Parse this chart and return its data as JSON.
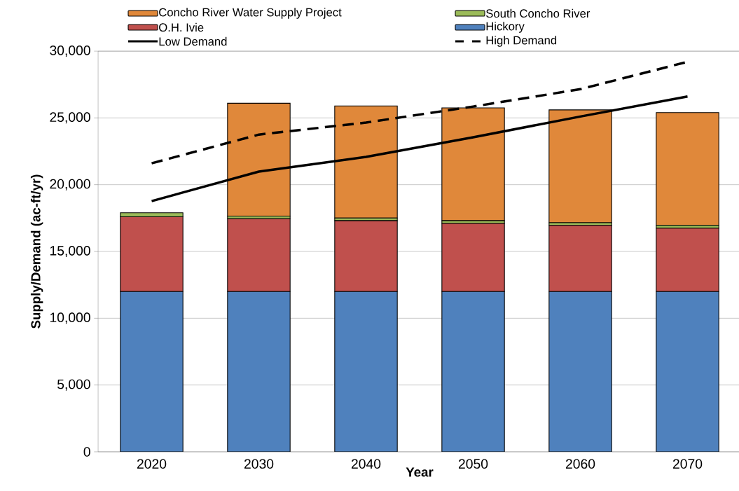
{
  "chart_data": {
    "type": "bar",
    "stacked": true,
    "xlabel": "Year",
    "ylabel": "Supply/Demand (ac-ft/yr)",
    "categories": [
      "2020",
      "2030",
      "2040",
      "2050",
      "2060",
      "2070"
    ],
    "series": [
      {
        "name": "Hickory",
        "color": "#4f81bd",
        "values": [
          12000,
          12000,
          12000,
          12000,
          12000,
          12000
        ]
      },
      {
        "name": "O.H. Ivie",
        "color": "#c0504d",
        "values": [
          5600,
          5450,
          5300,
          5100,
          4950,
          4750
        ]
      },
      {
        "name": "South Concho River",
        "color": "#9bbb59",
        "values": [
          300,
          200,
          200,
          200,
          200,
          200
        ]
      },
      {
        "name": "Concho River Water Supply Project",
        "color": "#e0883a",
        "values": [
          0,
          8450,
          8400,
          8450,
          8450,
          8450
        ]
      },
      {
        "name": "Low Demand",
        "type": "line",
        "color": "#000000",
        "line_style": "solid",
        "values": [
          18770,
          20980,
          22080,
          23550,
          25100,
          26600
        ]
      },
      {
        "name": "High Demand",
        "type": "line",
        "color": "#000000",
        "line_style": "dashed",
        "values": [
          21600,
          23750,
          24650,
          25850,
          27150,
          29200
        ]
      }
    ],
    "ylim": [
      0,
      30000
    ],
    "yticks": [
      0,
      {
        "value": 5000,
        "label": "5,000"
      },
      {
        "value": 10000,
        "label": "10,000"
      },
      {
        "value": 15000,
        "label": "15,000"
      },
      {
        "value": 20000,
        "label": "20,000"
      },
      {
        "value": 25000,
        "label": "25,000"
      },
      {
        "value": 30000,
        "label": "30,000"
      }
    ],
    "grid": "y",
    "legend": "top"
  }
}
